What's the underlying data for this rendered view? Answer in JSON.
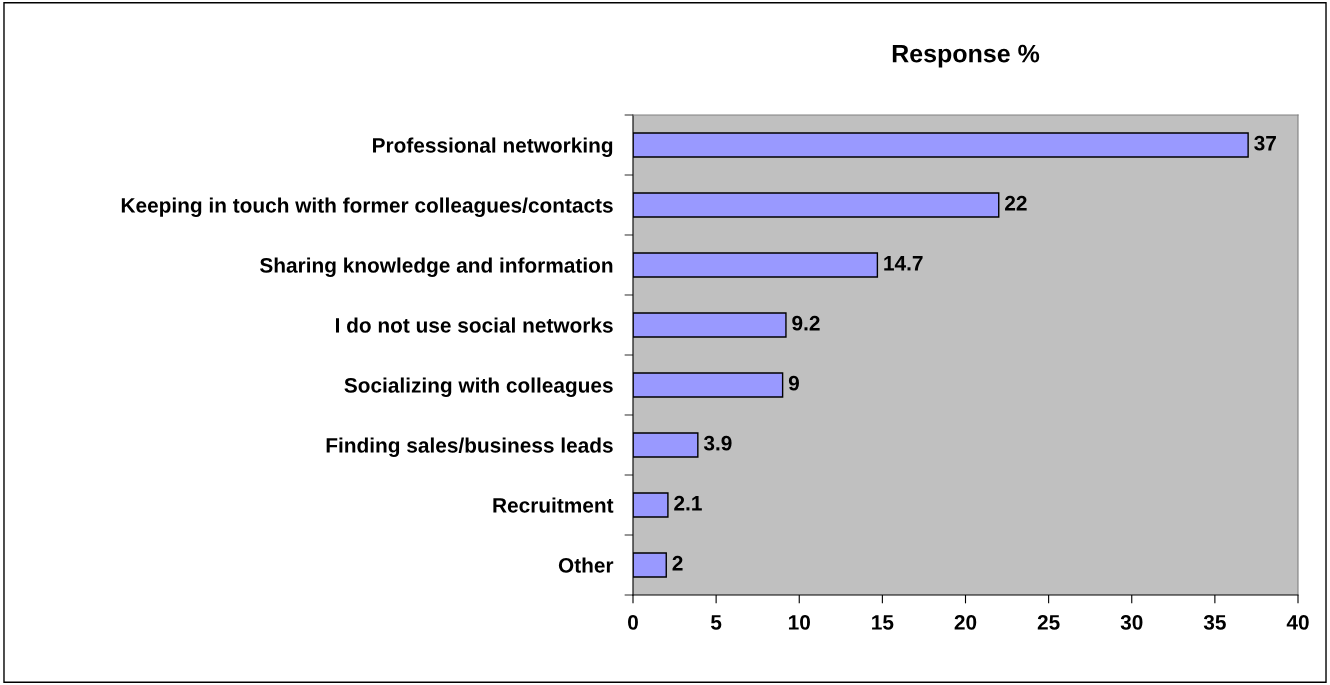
{
  "chart_data": {
    "type": "bar",
    "orientation": "horizontal",
    "title": "Response %",
    "categories": [
      "Professional networking",
      "Keeping in touch with former colleagues/contacts",
      "Sharing knowledge and information",
      "I do not use social networks",
      "Socializing with colleagues",
      "Finding sales/business leads",
      "Recruitment",
      "Other"
    ],
    "values": [
      37,
      22,
      14.7,
      9.2,
      9,
      3.9,
      2.1,
      2
    ],
    "color": "#9999ff",
    "xlim": [
      0,
      40
    ],
    "xticks": [
      0,
      5,
      10,
      15,
      20,
      25,
      30,
      35,
      40
    ],
    "data_labels": true,
    "grid": false
  }
}
